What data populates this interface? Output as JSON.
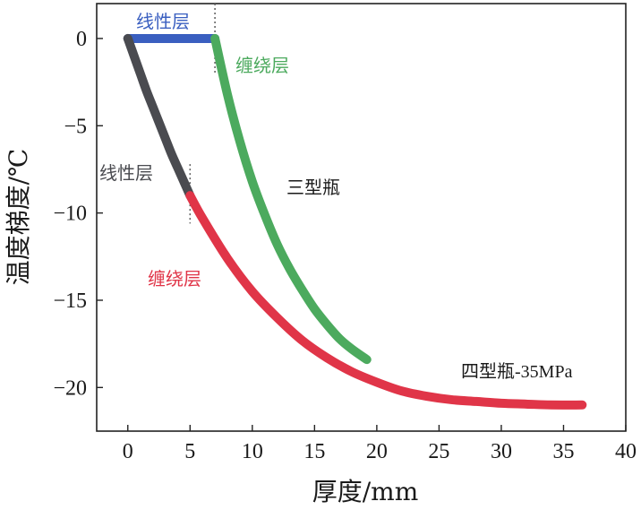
{
  "chart_data": {
    "type": "line",
    "title": "",
    "xlabel": "厚度/mm",
    "ylabel": "温度梯度/℃",
    "xlim": [
      -2.5,
      40
    ],
    "ylim": [
      -22.5,
      2
    ],
    "xticks": [
      0,
      5,
      10,
      15,
      20,
      25,
      30,
      35,
      40
    ],
    "yticks": [
      0,
      -5,
      -10,
      -15,
      -20
    ],
    "xtick_labels": [
      "0",
      "5",
      "10",
      "15",
      "20",
      "25",
      "30",
      "35",
      "40"
    ],
    "ytick_labels": [
      "0",
      "−5",
      "−10",
      "−15",
      "−20"
    ],
    "grid": false,
    "series": [
      {
        "name": "三型瓶 线性层",
        "color": "#3a5fc0",
        "x": [
          0,
          1,
          2,
          3,
          4,
          5,
          6,
          7
        ],
        "y": [
          0,
          0,
          0,
          0,
          0,
          0,
          0,
          0
        ]
      },
      {
        "name": "三型瓶 缠绕层",
        "color": "#4caa5e",
        "x": [
          7,
          8,
          9,
          10,
          11,
          12,
          13,
          14,
          15,
          16,
          17,
          18,
          19.2
        ],
        "y": [
          0,
          -3.2,
          -5.9,
          -8.2,
          -10.1,
          -11.8,
          -13.2,
          -14.4,
          -15.5,
          -16.4,
          -17.2,
          -17.8,
          -18.4
        ]
      },
      {
        "name": "四型瓶 线性层",
        "color": "#4a4b50",
        "x": [
          0,
          0.5,
          1,
          1.5,
          2,
          2.5,
          3,
          3.5,
          4,
          4.5,
          5
        ],
        "y": [
          0,
          -1.0,
          -2.0,
          -3.0,
          -3.9,
          -4.8,
          -5.7,
          -6.6,
          -7.4,
          -8.2,
          -9.0
        ]
      },
      {
        "name": "四型瓶 缠绕层",
        "color": "#e03548",
        "x": [
          5,
          6,
          8,
          10,
          12,
          14,
          16,
          18,
          20,
          22,
          24,
          26,
          28,
          30,
          32,
          34,
          36.5
        ],
        "y": [
          -9.0,
          -10.3,
          -12.6,
          -14.5,
          -16.0,
          -17.3,
          -18.3,
          -19.1,
          -19.7,
          -20.2,
          -20.5,
          -20.7,
          -20.8,
          -20.9,
          -20.95,
          -21.0,
          -21.0
        ]
      }
    ],
    "annotations": {
      "type3_liner": "线性层",
      "type3_wound": "缠绕层",
      "type3_bottle": "三型瓶",
      "type4_liner": "线性层",
      "type4_wound": "缠绕层",
      "type4_bottle": "四型瓶-35MPa"
    },
    "divider_lines": [
      {
        "x": 7,
        "y_range": [
          2,
          -2
        ]
      },
      {
        "x": 5,
        "y_range": [
          -7.2,
          -10.6
        ]
      }
    ]
  }
}
